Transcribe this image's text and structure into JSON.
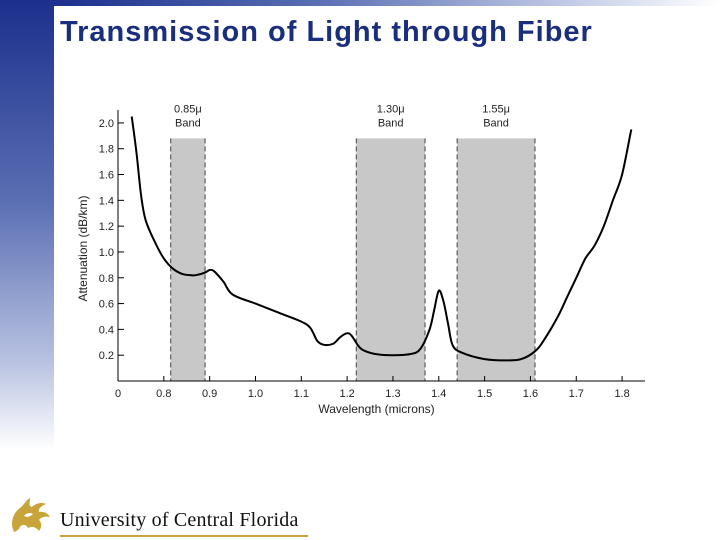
{
  "title": "Transmission of Light through Fiber",
  "footer": {
    "institution": "University of Central Florida"
  },
  "colors": {
    "title": "#1a2e7e",
    "band_fill": "#c8c8c8",
    "curve": "#000000",
    "logo_gold": "#c9a43a"
  },
  "chart_data": {
    "type": "line",
    "xlabel": "Wavelength (microns)",
    "ylabel": "Attenuation (dB/km)",
    "xlim": [
      0.7,
      1.85
    ],
    "ylim": [
      0,
      2.1
    ],
    "x_ticks": [
      {
        "value": 0.8,
        "label": "0.8"
      },
      {
        "value": 0.9,
        "label": "0.9"
      },
      {
        "value": 1.0,
        "label": "1.0"
      },
      {
        "value": 1.1,
        "label": "1.1"
      },
      {
        "value": 1.2,
        "label": "1.2"
      },
      {
        "value": 1.3,
        "label": "1.3"
      },
      {
        "value": 1.4,
        "label": "1.4"
      },
      {
        "value": 1.5,
        "label": "1.5"
      },
      {
        "value": 1.6,
        "label": "1.6"
      },
      {
        "value": 1.7,
        "label": "1.7"
      },
      {
        "value": 1.8,
        "label": "1.8"
      }
    ],
    "x_origin_label": "0",
    "y_ticks": [
      {
        "value": 0.2,
        "label": "0.2"
      },
      {
        "value": 0.4,
        "label": "0.4"
      },
      {
        "value": 0.6,
        "label": "0.6"
      },
      {
        "value": 0.8,
        "label": "0.8"
      },
      {
        "value": 1.0,
        "label": "1.0"
      },
      {
        "value": 1.2,
        "label": "1.2"
      },
      {
        "value": 1.4,
        "label": "1.4"
      },
      {
        "value": 1.6,
        "label": "1.6"
      },
      {
        "value": 1.8,
        "label": "1.8"
      },
      {
        "value": 2.0,
        "label": "2.0"
      }
    ],
    "bands": [
      {
        "name": "0.85μ",
        "label": "Band",
        "start": 0.815,
        "end": 0.89,
        "top": 1.88
      },
      {
        "name": "1.30μ",
        "label": "Band",
        "start": 1.22,
        "end": 1.37,
        "top": 1.88
      },
      {
        "name": "1.55μ",
        "label": "Band",
        "start": 1.44,
        "end": 1.61,
        "top": 1.88
      }
    ],
    "series": [
      {
        "x": [
          0.73,
          0.74,
          0.75,
          0.76,
          0.78,
          0.8,
          0.82,
          0.84,
          0.86,
          0.87,
          0.89,
          0.9,
          0.91,
          0.93,
          0.95,
          1.0,
          1.05,
          1.1,
          1.12,
          1.135,
          1.15,
          1.17,
          1.185,
          1.2,
          1.21,
          1.23,
          1.26,
          1.3,
          1.34,
          1.36,
          1.38,
          1.39,
          1.4,
          1.41,
          1.42,
          1.43,
          1.45,
          1.5,
          1.55,
          1.58,
          1.61,
          1.63,
          1.66,
          1.68,
          1.7,
          1.72,
          1.74,
          1.76,
          1.78,
          1.8,
          1.82
        ],
        "y": [
          2.05,
          1.78,
          1.45,
          1.25,
          1.08,
          0.95,
          0.87,
          0.83,
          0.82,
          0.82,
          0.84,
          0.86,
          0.85,
          0.77,
          0.67,
          0.6,
          0.53,
          0.46,
          0.41,
          0.31,
          0.28,
          0.29,
          0.34,
          0.37,
          0.35,
          0.25,
          0.21,
          0.2,
          0.21,
          0.25,
          0.4,
          0.55,
          0.7,
          0.62,
          0.45,
          0.28,
          0.22,
          0.17,
          0.16,
          0.17,
          0.23,
          0.32,
          0.5,
          0.65,
          0.8,
          0.95,
          1.05,
          1.2,
          1.4,
          1.6,
          1.95
        ]
      }
    ],
    "grid": false,
    "legend": "none"
  }
}
